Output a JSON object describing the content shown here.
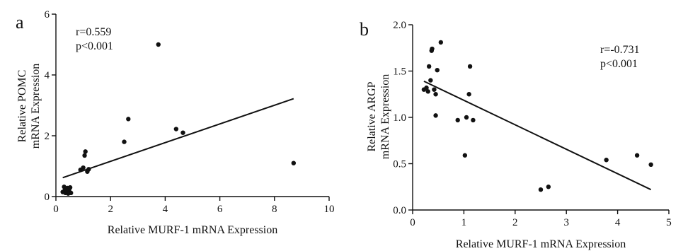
{
  "chart_data": [
    {
      "panel": "a",
      "type": "scatter",
      "xlabel": "Relative MURF-1 mRNA Expression",
      "ylabel": [
        "Relative POMC",
        "mRNA Expression"
      ],
      "xlim": [
        0,
        10
      ],
      "ylim": [
        0,
        6
      ],
      "xticks": [
        0,
        2,
        4,
        6,
        8,
        10
      ],
      "yticks": [
        0,
        2,
        4,
        6
      ],
      "grid": false,
      "annotations": [
        "r=0.559",
        "p<0.001"
      ],
      "points": [
        {
          "x": 0.25,
          "y": 0.15
        },
        {
          "x": 0.3,
          "y": 0.32
        },
        {
          "x": 0.32,
          "y": 0.2
        },
        {
          "x": 0.35,
          "y": 0.12
        },
        {
          "x": 0.38,
          "y": 0.25
        },
        {
          "x": 0.4,
          "y": 0.18
        },
        {
          "x": 0.42,
          "y": 0.28
        },
        {
          "x": 0.45,
          "y": 0.1
        },
        {
          "x": 0.48,
          "y": 0.22
        },
        {
          "x": 0.5,
          "y": 0.14
        },
        {
          "x": 0.52,
          "y": 0.3
        },
        {
          "x": 0.55,
          "y": 0.12
        },
        {
          "x": 0.9,
          "y": 0.88
        },
        {
          "x": 1.0,
          "y": 0.95
        },
        {
          "x": 1.05,
          "y": 1.35
        },
        {
          "x": 1.08,
          "y": 1.48
        },
        {
          "x": 1.15,
          "y": 0.82
        },
        {
          "x": 1.2,
          "y": 0.9
        },
        {
          "x": 2.5,
          "y": 1.8
        },
        {
          "x": 2.65,
          "y": 2.55
        },
        {
          "x": 3.75,
          "y": 5.0
        },
        {
          "x": 4.4,
          "y": 2.22
        },
        {
          "x": 4.65,
          "y": 2.1
        },
        {
          "x": 8.7,
          "y": 1.1
        }
      ],
      "fit_line": [
        {
          "x": 0.25,
          "y": 0.62
        },
        {
          "x": 8.7,
          "y": 3.22
        }
      ]
    },
    {
      "panel": "b",
      "type": "scatter",
      "xlabel": "Relative MURF-1 mRNA Expression",
      "ylabel": [
        "Relative ARGP",
        "mRNA Expression"
      ],
      "xlim": [
        0,
        5
      ],
      "ylim": [
        0,
        2.0
      ],
      "xticks": [
        0,
        1,
        2,
        3,
        4,
        5
      ],
      "yticks": [
        "0.0",
        "0.5",
        "1.0",
        "1.5",
        "2.0"
      ],
      "grid": false,
      "annotations": [
        "r=-0.731",
        "p<0.001"
      ],
      "points": [
        {
          "x": 0.22,
          "y": 1.3
        },
        {
          "x": 0.27,
          "y": 1.32
        },
        {
          "x": 0.3,
          "y": 1.28
        },
        {
          "x": 0.32,
          "y": 1.55
        },
        {
          "x": 0.35,
          "y": 1.4
        },
        {
          "x": 0.37,
          "y": 1.72
        },
        {
          "x": 0.38,
          "y": 1.74
        },
        {
          "x": 0.42,
          "y": 1.3
        },
        {
          "x": 0.45,
          "y": 1.25
        },
        {
          "x": 0.45,
          "y": 1.02
        },
        {
          "x": 0.48,
          "y": 1.51
        },
        {
          "x": 0.55,
          "y": 1.81
        },
        {
          "x": 0.88,
          "y": 0.97
        },
        {
          "x": 1.02,
          "y": 0.59
        },
        {
          "x": 1.05,
          "y": 1.0
        },
        {
          "x": 1.1,
          "y": 1.25
        },
        {
          "x": 1.12,
          "y": 1.55
        },
        {
          "x": 1.18,
          "y": 0.97
        },
        {
          "x": 2.5,
          "y": 0.22
        },
        {
          "x": 2.65,
          "y": 0.25
        },
        {
          "x": 3.78,
          "y": 0.54
        },
        {
          "x": 4.38,
          "y": 0.59
        },
        {
          "x": 4.65,
          "y": 0.49
        }
      ],
      "fit_line": [
        {
          "x": 0.22,
          "y": 1.39
        },
        {
          "x": 4.65,
          "y": 0.22
        }
      ]
    }
  ]
}
